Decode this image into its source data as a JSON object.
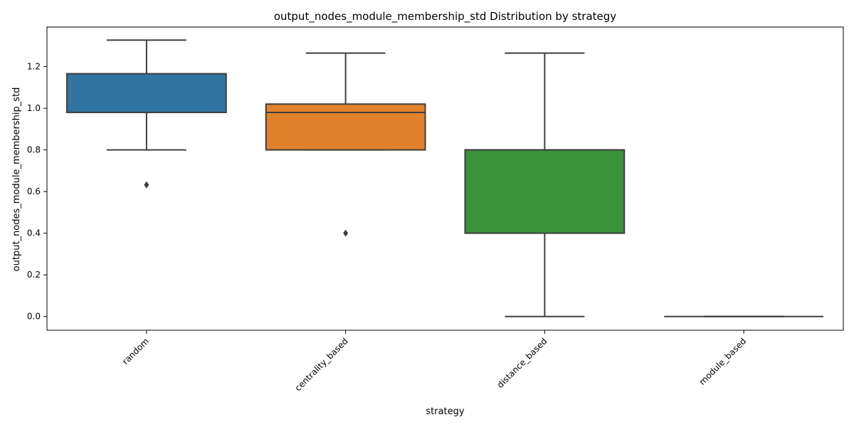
{
  "chart_data": {
    "type": "box",
    "title": "output_nodes_module_membership_std Distribution by strategy",
    "xlabel": "strategy",
    "ylabel": "output_nodes_module_membership_std",
    "ylim": [
      -0.066,
      1.39
    ],
    "yticks": [
      0.0,
      0.2,
      0.4,
      0.6,
      0.8,
      1.0,
      1.2
    ],
    "ytick_labels": [
      "0.0",
      "0.2",
      "0.4",
      "0.6",
      "0.8",
      "1.0",
      "1.2"
    ],
    "categories": [
      "random",
      "centrality_based",
      "distance_based",
      "module_based"
    ],
    "boxes": [
      {
        "category": "random",
        "whisker_low": 0.8,
        "q1": 0.98,
        "median": 0.98,
        "q3": 1.166,
        "whisker_high": 1.327,
        "outliers": [
          0.632
        ],
        "color": "#3274a1"
      },
      {
        "category": "centrality_based",
        "whisker_low": 0.8,
        "q1": 0.8,
        "median": 0.98,
        "q3": 1.02,
        "whisker_high": 1.265,
        "outliers": [
          0.4
        ],
        "color": "#e1812c"
      },
      {
        "category": "distance_based",
        "whisker_low": 0.0,
        "q1": 0.4,
        "median": 0.8,
        "q3": 0.8,
        "whisker_high": 1.265,
        "outliers": [],
        "color": "#3a923a"
      },
      {
        "category": "module_based",
        "whisker_low": 0.0,
        "q1": 0.0,
        "median": 0.0,
        "q3": 0.0,
        "whisker_high": 0.0,
        "outliers": [],
        "color": "#c03d3e"
      }
    ],
    "grid": false,
    "legend": "none"
  }
}
